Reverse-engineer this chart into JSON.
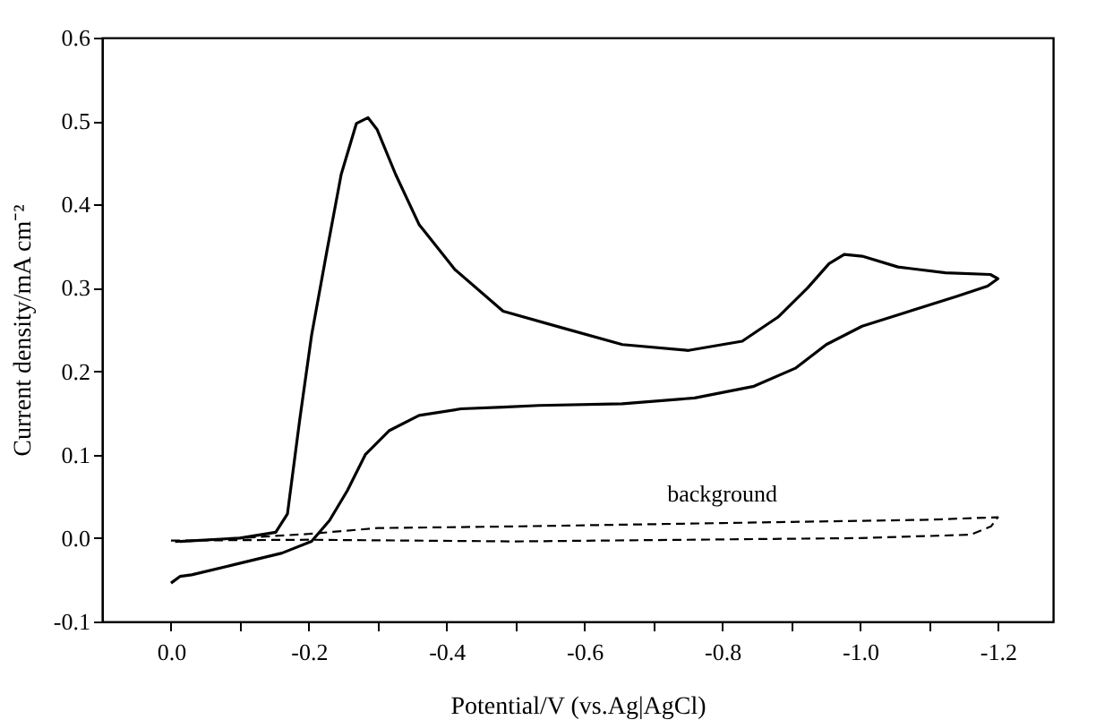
{
  "chart_data": {
    "type": "line",
    "xlabel": "Potential/V (vs.Ag|AgCl)",
    "ylabel": "Current density/mA cm⁻²",
    "xlim": [
      0.1,
      -1.28
    ],
    "ylim": [
      -0.1,
      0.6
    ],
    "xticks": [
      {
        "value": 0,
        "label": "0.0"
      },
      {
        "value": -0.1,
        "label": null
      },
      {
        "value": -0.2,
        "label": "-0.2"
      },
      {
        "value": -0.3,
        "label": null
      },
      {
        "value": -0.4,
        "label": "-0.4"
      },
      {
        "value": -0.5,
        "label": null
      },
      {
        "value": -0.6,
        "label": "-0.6"
      },
      {
        "value": -0.7,
        "label": null
      },
      {
        "value": -0.8,
        "label": "-0.8"
      },
      {
        "value": -0.9,
        "label": null
      },
      {
        "value": -1.0,
        "label": "-1.0"
      },
      {
        "value": -1.1,
        "label": null
      },
      {
        "value": -1.2,
        "label": "-1.2"
      }
    ],
    "yticks": [
      {
        "value": -0.1,
        "label": "-0.1"
      },
      {
        "value": 0,
        "label": "0.0"
      },
      {
        "value": 0.1,
        "label": "0.1"
      },
      {
        "value": 0.2,
        "label": "0.2"
      },
      {
        "value": 0.3,
        "label": "0.3"
      },
      {
        "value": 0.4,
        "label": "0.4"
      },
      {
        "value": 0.5,
        "label": "0.5"
      },
      {
        "value": 0.6,
        "label": "0.6"
      }
    ],
    "grid": false,
    "marker": "none",
    "series": [
      {
        "color": "#000000",
        "line_style": "solid",
        "x": [
          0,
          -0.013,
          -0.03,
          -0.091,
          -0.161,
          -0.204,
          -0.23,
          -0.256,
          -0.282,
          -0.317,
          -0.36,
          -0.421,
          -0.482,
          -0.534,
          -0.655,
          -0.76,
          -0.846,
          -0.907,
          -0.951,
          -1.003,
          -1.072,
          -1.141,
          -1.185,
          -1.2,
          -1.189,
          -1.124,
          -1.055,
          -1.003,
          -0.977,
          -0.955,
          -0.924,
          -0.881,
          -0.829,
          -0.751,
          -0.655,
          -0.568,
          -0.482,
          -0.412,
          -0.36,
          -0.326,
          -0.299,
          -0.286,
          -0.269,
          -0.247,
          -0.226,
          -0.204,
          -0.187,
          -0.169,
          -0.152,
          -0.1,
          -0.013
        ],
        "values": [
          -0.054,
          -0.046,
          -0.044,
          -0.032,
          -0.018,
          -0.004,
          0.021,
          0.057,
          0.1,
          0.129,
          0.147,
          0.155,
          0.157,
          0.159,
          0.161,
          0.168,
          0.182,
          0.204,
          0.232,
          0.254,
          0.272,
          0.29,
          0.302,
          0.311,
          0.316,
          0.318,
          0.325,
          0.338,
          0.34,
          0.329,
          0.3,
          0.265,
          0.236,
          0.225,
          0.232,
          0.252,
          0.272,
          0.322,
          0.376,
          0.436,
          0.49,
          0.504,
          0.497,
          0.436,
          0.343,
          0.243,
          0.143,
          0.029,
          0.007,
          0.0,
          -0.004
        ]
      },
      {
        "name": "background",
        "color": "#000000",
        "line_style": "dashed",
        "x": [
          0,
          -0.2,
          -0.5,
          -1.0,
          -1.16,
          -1.19,
          -1.2,
          -1.1,
          -0.8,
          -0.5,
          -0.3,
          -0.2,
          -0.1,
          0
        ],
        "values": [
          -0.003,
          -0.002,
          -0.004,
          0.0,
          0.004,
          0.014,
          0.025,
          0.022,
          0.018,
          0.014,
          0.012,
          0.005,
          0.0,
          -0.005
        ]
      }
    ]
  }
}
